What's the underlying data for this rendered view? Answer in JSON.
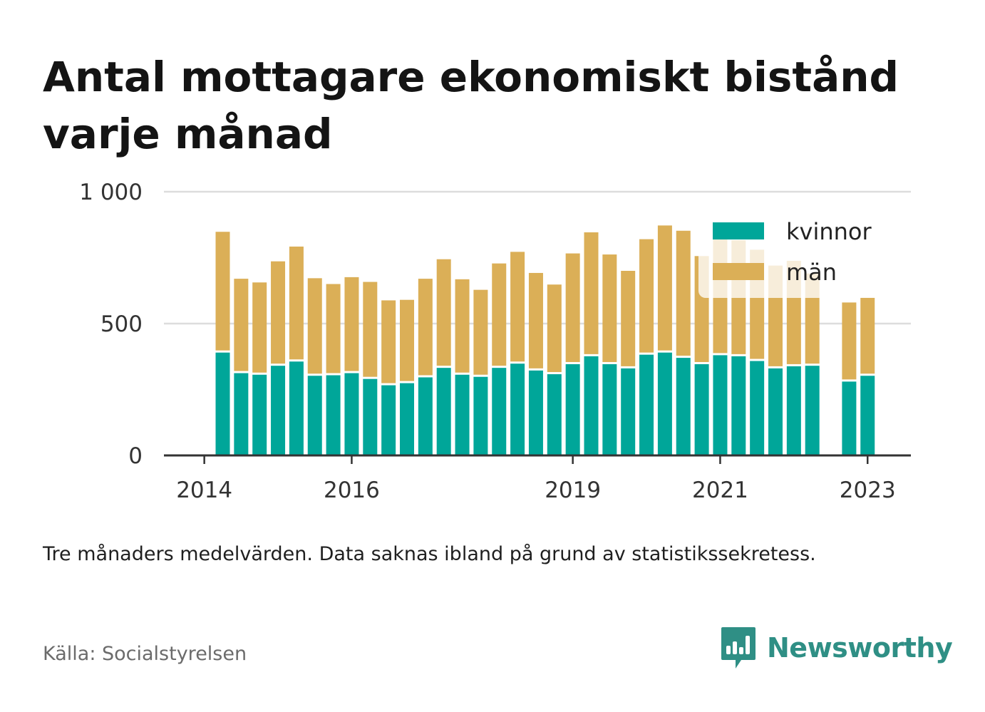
{
  "title": "Antal mottagare ekonomiskt bistånd varje månad",
  "note": "Tre månaders medelvärden. Data saknas ibland på grund av statistikssekretess.",
  "source": "Källa: Socialstyrelsen",
  "brand": "Newsworthy",
  "colors": {
    "kvinnor": "#00a699",
    "man": "#dbaf57",
    "grid": "#dddddd",
    "axis": "#333333",
    "brand": "#2f8f85"
  },
  "chart_data": {
    "type": "bar",
    "stacked": true,
    "x_ticks": [
      "2014",
      "2016",
      "2019",
      "2021",
      "2023"
    ],
    "y_ticks": [
      "0",
      "500",
      "1 000"
    ],
    "ylim": [
      0,
      1000
    ],
    "legend_position": "top-right",
    "x_period": "quarterly (three-month averages)",
    "categories": [
      "2014 Q2",
      "2014 Q3",
      "2014 Q4",
      "2015 Q1",
      "2015 Q2",
      "2015 Q3",
      "2015 Q4",
      "2016 Q1",
      "2016 Q2",
      "2016 Q3",
      "2016 Q4",
      "2017 Q1",
      "2017 Q2",
      "2017 Q3",
      "2017 Q4",
      "2018 Q1",
      "2018 Q2",
      "2018 Q3",
      "2018 Q4",
      "2019 Q1",
      "2019 Q2",
      "2019 Q3",
      "2019 Q4",
      "2020 Q1",
      "2020 Q2",
      "2020 Q3",
      "2020 Q4",
      "2021 Q1",
      "2021 Q2",
      "2021 Q3",
      "2021 Q4",
      "2022 Q1",
      "2022 Q2",
      "2022 Q3",
      "2022 Q4",
      "2023 Q1"
    ],
    "series": [
      {
        "name": "kvinnor",
        "values": [
          390,
          312,
          306,
          340,
          356,
          302,
          304,
          312,
          290,
          266,
          274,
          296,
          332,
          306,
          298,
          332,
          348,
          322,
          308,
          346,
          376,
          346,
          330,
          382,
          390,
          370,
          346,
          380,
          376,
          358,
          330,
          338,
          340,
          null,
          280,
          302
        ]
      },
      {
        "name": "män",
        "values": [
          458,
          358,
          350,
          396,
          436,
          370,
          346,
          364,
          368,
          322,
          316,
          374,
          412,
          362,
          330,
          396,
          424,
          370,
          340,
          420,
          470,
          416,
          370,
          438,
          482,
          482,
          410,
          458,
          440,
          422,
          390,
          400,
          350,
          null,
          300,
          296
        ]
      }
    ]
  }
}
